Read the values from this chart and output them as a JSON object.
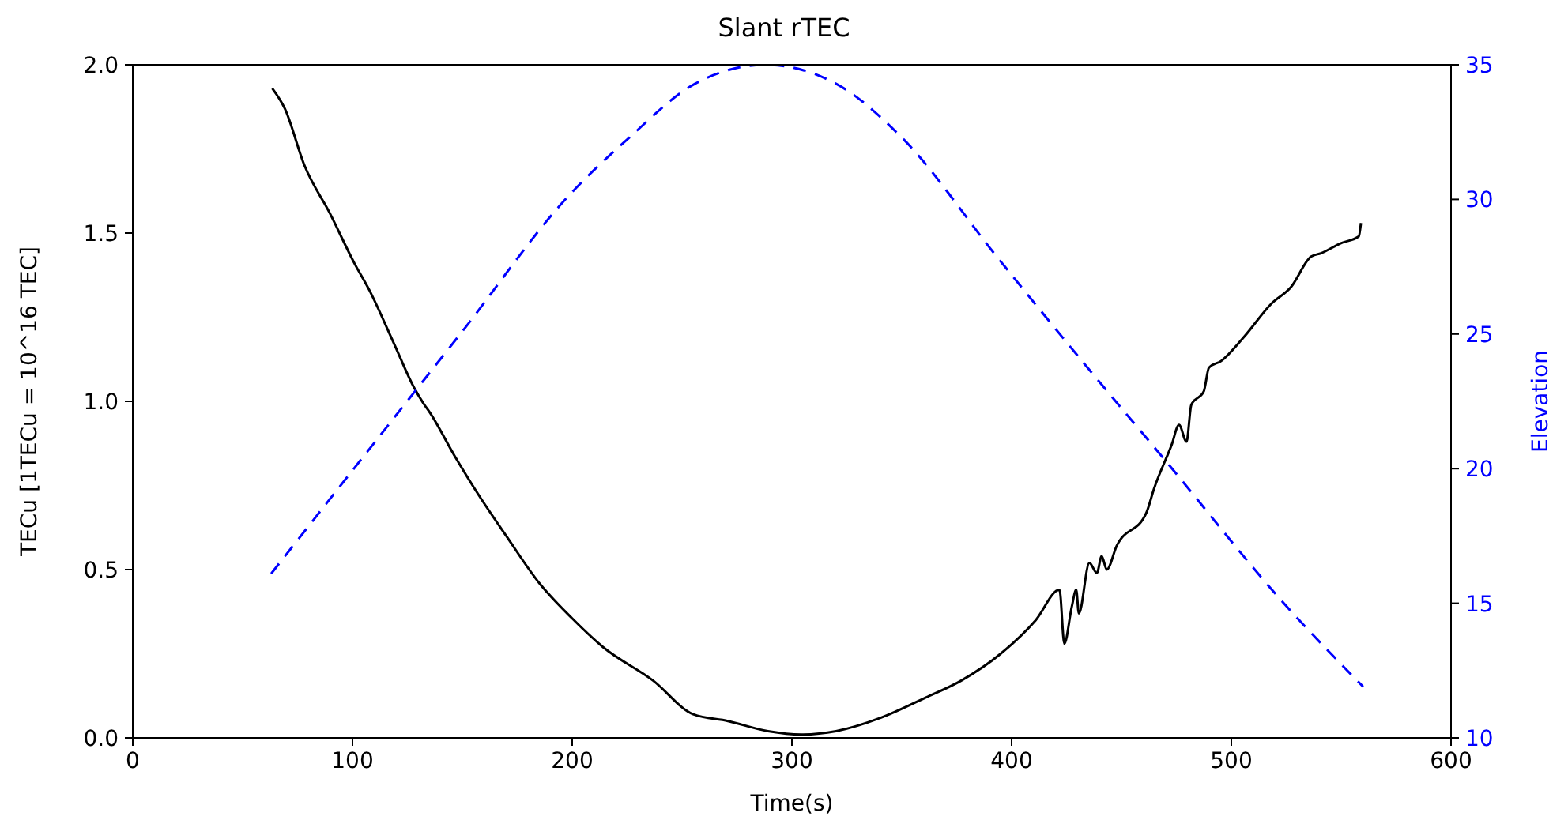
{
  "chart_data": {
    "type": "line",
    "title": "Slant rTEC",
    "xlabel": "Time(s)",
    "ylabel": "TECu [1TECu = 10^16 TEC]",
    "y2label": "Elevation",
    "xlim": [
      0,
      600
    ],
    "xticks": [
      0,
      100,
      200,
      300,
      400,
      500,
      600
    ],
    "ylim": [
      0,
      2
    ],
    "yticks": [
      {
        "value": 0,
        "label": "0.0"
      },
      {
        "value": 0.5,
        "label": "0.5"
      },
      {
        "value": 1,
        "label": "1.0"
      },
      {
        "value": 1.5,
        "label": "1.5"
      },
      {
        "value": 2,
        "label": "2.0"
      }
    ],
    "y2lim": [
      10,
      35
    ],
    "y2ticks": [
      10,
      15,
      20,
      25,
      30,
      35
    ],
    "grid": false,
    "marker": "none",
    "series": [
      {
        "color": "#000000",
        "line_style": "solid",
        "x": [
          63.5,
          69.2,
          78.2,
          89.6,
          100.9,
          107.7,
          119,
          128.1,
          132.7,
          134.9,
          146.3,
          157.6,
          170,
          185,
          200,
          214,
          236.9,
          255.1,
          270.9,
          289.1,
          304.3,
          320.1,
          340.6,
          361,
          377,
          395,
          411,
          421.8,
          424,
          427.4,
          429.4,
          430.6,
          435.4,
          438.8,
          441,
          443.3,
          447.8,
          461.4,
          464.8,
          472.8,
          476.2,
          479.6,
          481.8,
          487.5,
          489.8,
          495.4,
          505.6,
          518.2,
          527.2,
          536.3,
          540.8,
          549.9,
          558,
          559
        ],
        "values": [
          1.93,
          1.87,
          1.7,
          1.56,
          1.41,
          1.33,
          1.17,
          1.04,
          0.99,
          0.97,
          0.84,
          0.72,
          0.6,
          0.46,
          0.355,
          0.27,
          0.17,
          0.07,
          0.05,
          0.02,
          0.01,
          0.02,
          0.06,
          0.12,
          0.17,
          0.25,
          0.35,
          0.44,
          0.28,
          0.39,
          0.44,
          0.37,
          0.52,
          0.49,
          0.54,
          0.5,
          0.57,
          0.67,
          0.74,
          0.87,
          0.93,
          0.88,
          0.99,
          1.03,
          1.1,
          1.12,
          1.19,
          1.29,
          1.34,
          1.43,
          1.44,
          1.47,
          1.49,
          1.53
        ]
      },
      {
        "color": "#0000ff",
        "line_style": "dashed",
        "axis": "y2",
        "x": [
          63,
          90,
          120,
          150,
          198,
          226,
          256,
          288,
          320,
          350,
          393,
          430,
          470,
          525,
          560
        ],
        "values": [
          16.1,
          18.9,
          22,
          25.1,
          30.1,
          32.3,
          34.3,
          35,
          34.3,
          32.3,
          27.9,
          24.2,
          20.3,
          14.9,
          11.9
        ]
      }
    ]
  }
}
